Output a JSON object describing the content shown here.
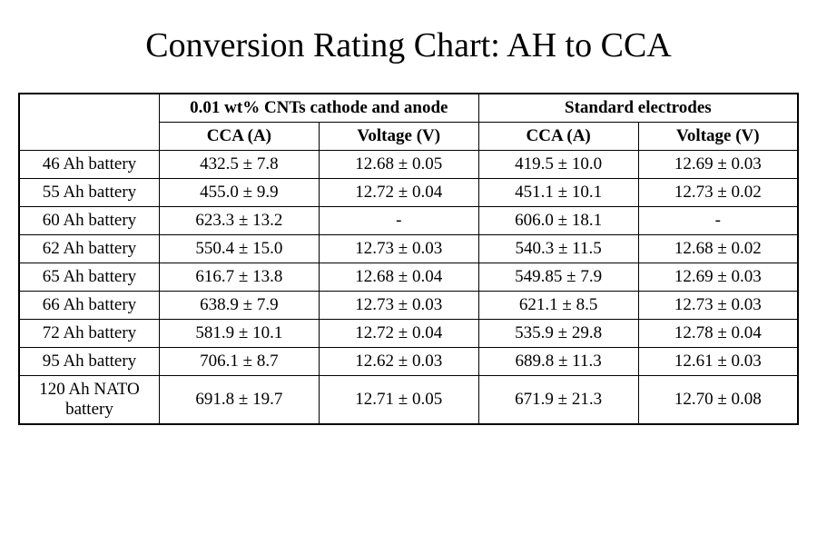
{
  "top_fragment": "",
  "title": "Conversion Rating Chart: AH to CCA",
  "table": {
    "type": "table",
    "group_headers": [
      "0.01 wt% CNTs cathode and anode",
      "Standard electrodes"
    ],
    "sub_headers": [
      "CCA (A)",
      "Voltage (V)",
      "CCA (A)",
      "Voltage (V)"
    ],
    "row_labels": [
      "46 Ah battery",
      "55 Ah battery",
      "60 Ah battery",
      "62 Ah battery",
      "65 Ah battery",
      "66 Ah battery",
      "72 Ah battery",
      "95 Ah battery",
      "120 Ah NATO battery"
    ],
    "rows": [
      [
        "432.5 ± 7.8",
        "12.68 ± 0.05",
        "419.5 ± 10.0",
        "12.69 ± 0.03"
      ],
      [
        "455.0 ± 9.9",
        "12.72 ± 0.04",
        "451.1 ± 10.1",
        "12.73 ± 0.02"
      ],
      [
        "623.3 ± 13.2",
        "-",
        "606.0 ± 18.1",
        "-"
      ],
      [
        "550.4 ± 15.0",
        "12.73 ± 0.03",
        "540.3 ± 11.5",
        "12.68 ± 0.02"
      ],
      [
        "616.7 ± 13.8",
        "12.68 ± 0.04",
        "549.85 ± 7.9",
        "12.69 ± 0.03"
      ],
      [
        "638.9 ± 7.9",
        "12.73 ± 0.03",
        "621.1 ± 8.5",
        "12.73 ± 0.03"
      ],
      [
        "581.9 ± 10.1",
        "12.72 ± 0.04",
        "535.9 ± 29.8",
        "12.78 ± 0.04"
      ],
      [
        "706.1 ± 8.7",
        "12.62 ± 0.03",
        "689.8 ± 11.3",
        "12.61 ± 0.03"
      ],
      [
        "691.8 ± 19.7",
        "12.71 ± 0.05",
        "671.9 ± 21.3",
        "12.70 ± 0.08"
      ]
    ],
    "border_color": "#000000",
    "background_color": "#ffffff",
    "font_family": "Times New Roman",
    "header_fontsize": 19,
    "cell_fontsize": 19,
    "title_fontsize": 38,
    "column_widths_pct": [
      18,
      20.5,
      20.5,
      20.5,
      20.5
    ]
  }
}
